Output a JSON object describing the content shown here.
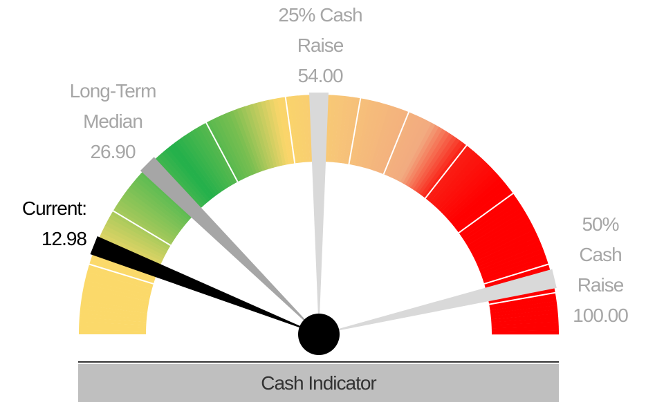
{
  "chart_data": {
    "type": "gauge",
    "title": "Cash Indicator",
    "range": [
      0,
      108
    ],
    "markers": [
      {
        "label": "Current:",
        "value": 12.98,
        "value_label": "12.98",
        "color": "#000000"
      },
      {
        "label": "Long-Term Median",
        "value": 26.9,
        "value_label": "26.90",
        "color": "#a6a6a6"
      },
      {
        "label": "25% Cash Raise",
        "value": 54,
        "value_label": "54.00",
        "color": "#d9d9d9"
      },
      {
        "label": "50% Cash Raise",
        "value": 100,
        "value_label": "100.00",
        "color": "#d9d9d9"
      }
    ]
  }
}
